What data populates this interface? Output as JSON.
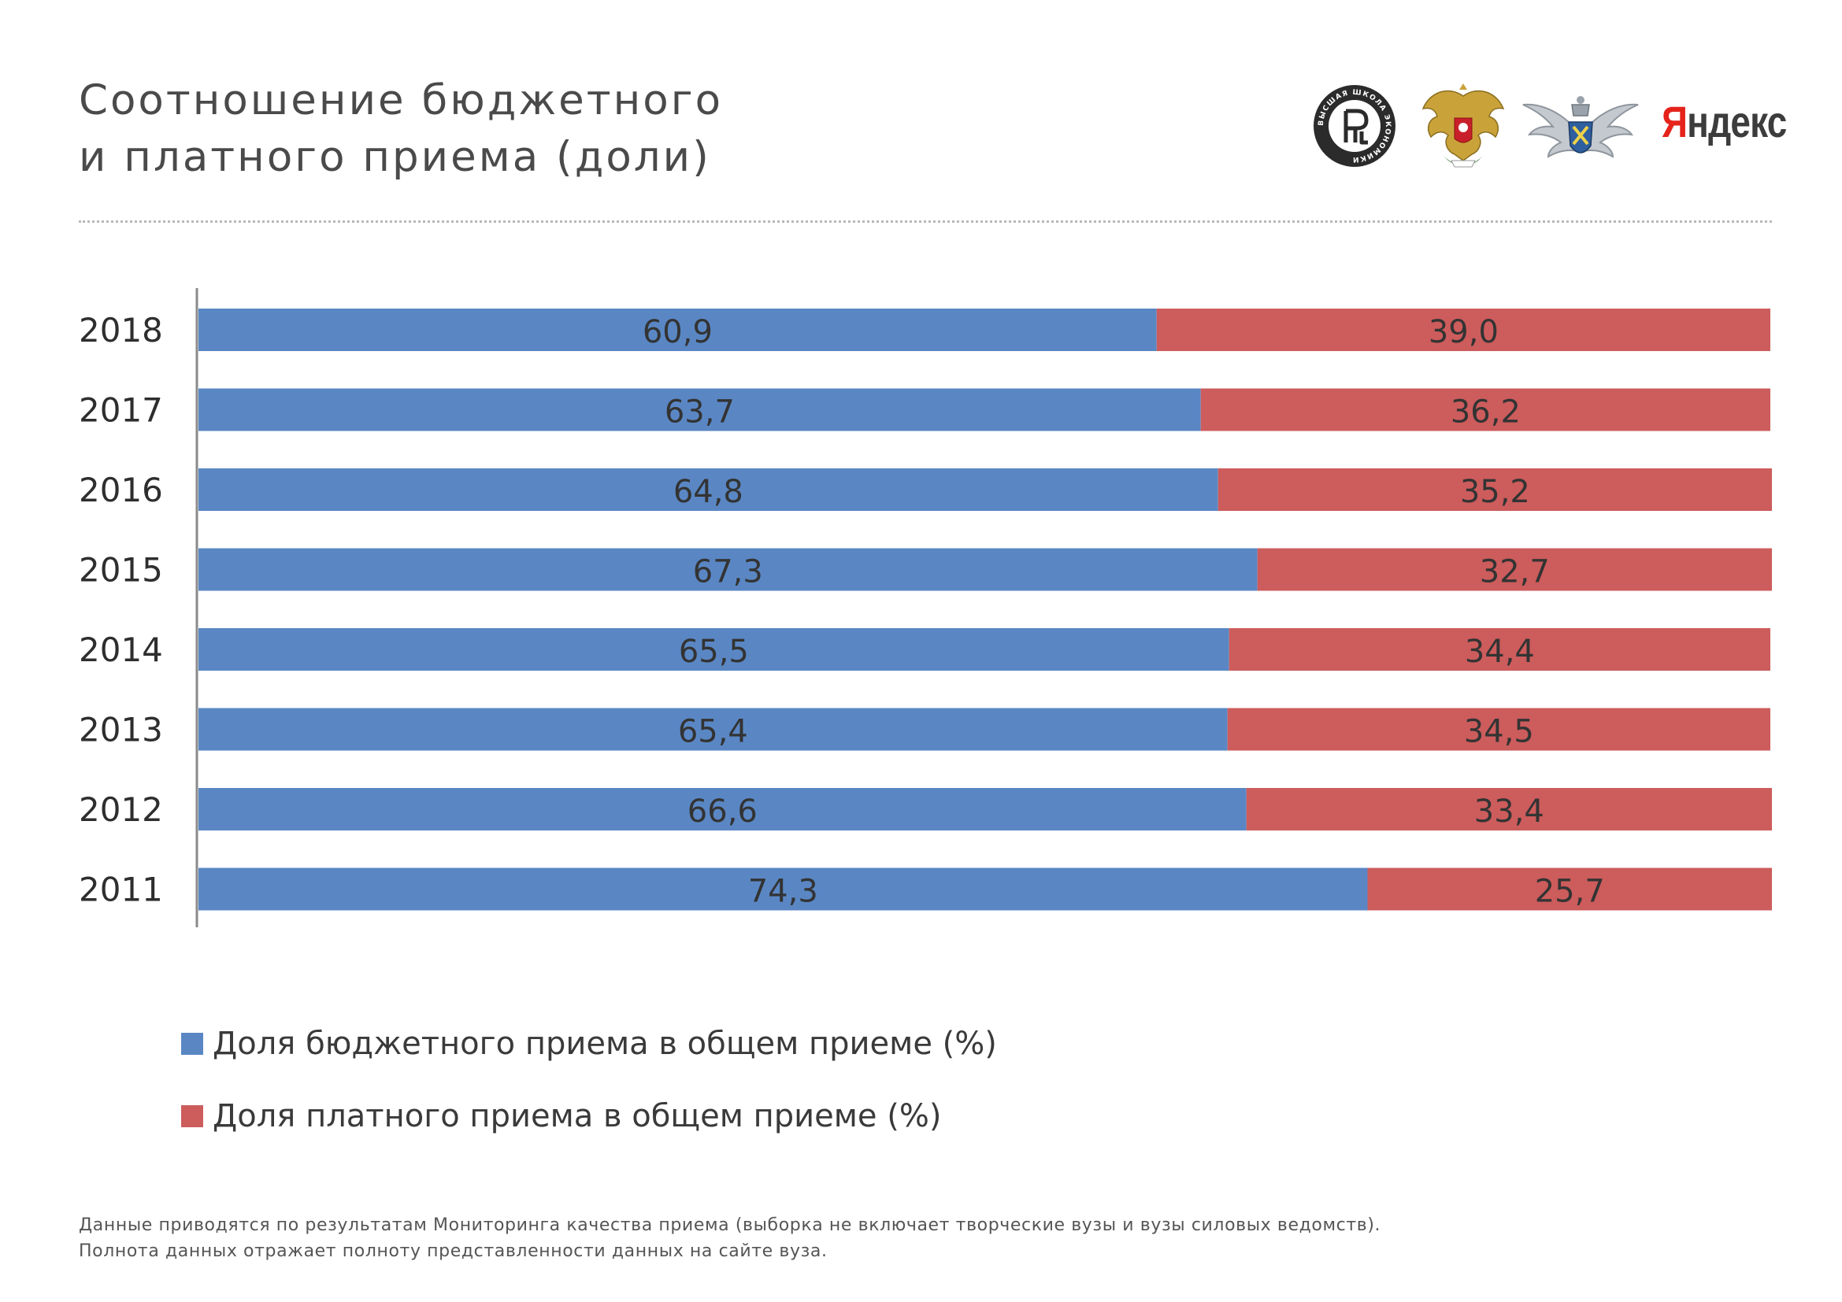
{
  "header": {
    "title_line1": "Соотношение бюджетного",
    "title_line2": "и платного приема (доли)"
  },
  "logos": {
    "hse_text": "ВЫСШАЯ ШКОЛА ЭКОНОМИКИ",
    "yandex_first": "Я",
    "yandex_rest": "ндекс"
  },
  "colors": {
    "budget": "#5a87c4",
    "paid": "#cd5c5c",
    "axis": "#8a8a8a",
    "label_text": "#333333"
  },
  "chart_data": {
    "type": "bar",
    "orientation": "horizontal",
    "stacked": true,
    "categories": [
      "2018",
      "2017",
      "2016",
      "2015",
      "2014",
      "2013",
      "2012",
      "2011"
    ],
    "series": [
      {
        "name": "Доля бюджетного приема в общем приеме (%)",
        "values": [
          60.9,
          63.7,
          64.8,
          67.3,
          65.5,
          65.4,
          66.6,
          74.3
        ]
      },
      {
        "name": "Доля платного приема в общем приеме (%)",
        "values": [
          39.0,
          36.2,
          35.2,
          32.7,
          34.4,
          34.5,
          33.4,
          25.7
        ]
      }
    ],
    "value_labels": [
      [
        "60,9",
        "63,7",
        "64,8",
        "67,3",
        "65,5",
        "65,4",
        "66,6",
        "74,3"
      ],
      [
        "39,0",
        "36,2",
        "35,2",
        "32,7",
        "34,4",
        "34,5",
        "33,4",
        "25,7"
      ]
    ],
    "xlim": [
      0,
      100
    ],
    "legend_position": "bottom-left",
    "grid": false
  },
  "legend": {
    "items": [
      {
        "label": "Доля бюджетного приема в общем приеме (%)"
      },
      {
        "label": "Доля платного приема в общем приеме (%)"
      }
    ]
  },
  "footnote": {
    "line1": "Данные приводятся по результатам Мониторинга качества приема (выборка не включает творческие вузы и вузы силовых ведомств).",
    "line2": "Полнота данных отражает полноту представленности данных на сайте вуза."
  }
}
